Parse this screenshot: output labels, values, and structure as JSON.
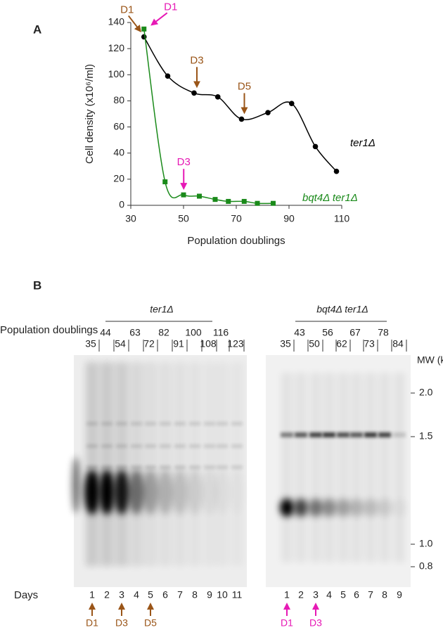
{
  "chart_data": {
    "type": "line",
    "panel_label": "A",
    "xlabel": "Population doublings",
    "ylabel": "Cell density (x10⁶/ml)",
    "xlim": [
      30,
      110
    ],
    "xticks": [
      30,
      50,
      70,
      90,
      110
    ],
    "ylim": [
      0,
      140
    ],
    "yticks": [
      0,
      20,
      40,
      60,
      80,
      100,
      120,
      140
    ],
    "series": [
      {
        "name": "ter1Δ",
        "color": "#000000",
        "marker": "circle",
        "x": [
          35,
          44,
          54,
          63,
          72,
          82,
          91,
          100,
          108
        ],
        "values": [
          129,
          99,
          86,
          83,
          66,
          71,
          78,
          45,
          26
        ]
      },
      {
        "name": "bqt4Δ ter1Δ",
        "color": "#1a8a1a",
        "marker": "square",
        "x": [
          35,
          43,
          50,
          56,
          62,
          67,
          73,
          78,
          84
        ],
        "values": [
          135,
          18,
          8,
          7,
          4.5,
          3,
          3,
          1.5,
          1.5
        ]
      }
    ],
    "annotations": [
      {
        "text": "D1",
        "x": 35,
        "y": 129,
        "color": "#9a5518"
      },
      {
        "text": "D1",
        "x": 35,
        "y": 135,
        "color": "#e619b5"
      },
      {
        "text": "D3",
        "x": 54,
        "y": 86,
        "color": "#9a5518"
      },
      {
        "text": "D5",
        "x": 72,
        "y": 66,
        "color": "#9a5518"
      },
      {
        "text": "D3",
        "x": 49,
        "y": 8,
        "color": "#e619b5"
      }
    ]
  },
  "gel": {
    "panel_label": "B",
    "doublings_label": "Population doublings",
    "days_label": "Days",
    "mw_label": "MW (kb)",
    "mw_markers": [
      "2.0",
      "1.5",
      "1.0",
      "0.8"
    ],
    "left": {
      "title": "ter1Δ",
      "doublings": [
        35,
        44,
        54,
        63,
        72,
        82,
        91,
        100,
        108,
        116,
        123
      ],
      "days": [
        1,
        2,
        3,
        4,
        5,
        6,
        7,
        8,
        9,
        10,
        11
      ],
      "arrows": [
        "D1",
        "D3",
        "D5"
      ],
      "arrow_color": "#9a5518"
    },
    "right": {
      "title": "bqt4Δ ter1Δ",
      "doublings": [
        35,
        43,
        50,
        56,
        62,
        67,
        73,
        78,
        84
      ],
      "days": [
        1,
        2,
        3,
        4,
        5,
        6,
        7,
        8,
        9
      ],
      "arrows": [
        "D1",
        "D3"
      ],
      "arrow_color": "#e619b5"
    }
  }
}
